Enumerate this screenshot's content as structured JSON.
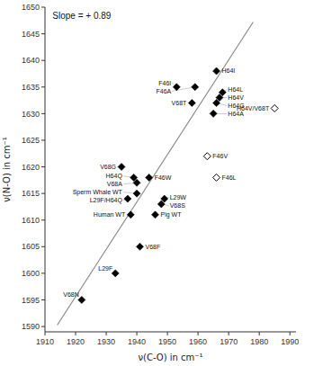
{
  "chart_data": {
    "type": "scatter",
    "title": "Slope = + 0.89",
    "xlabel": "ν(C-O) in cm⁻¹",
    "ylabel": "ν(N-O) in cm⁻¹",
    "xlim": [
      1910,
      1992
    ],
    "ylim": [
      1589,
      1650
    ],
    "xticks": [
      1910,
      1920,
      1930,
      1940,
      1950,
      1960,
      1970,
      1980,
      1990
    ],
    "yticks": [
      1590,
      1595,
      1600,
      1605,
      1610,
      1615,
      1620,
      1625,
      1630,
      1635,
      1640,
      1645,
      1650
    ],
    "series": [
      {
        "type": "line",
        "color": "#888888",
        "x": [
          1914,
          1978
        ],
        "values": [
          1590.26,
          1647.22
        ]
      },
      {
        "type": "scatter",
        "marker": "diamond",
        "color": "black",
        "x": [
          1922,
          1933,
          1941,
          1938,
          1937,
          1940,
          1946,
          1948,
          1940,
          1949,
          1939,
          1944,
          1935,
          1965,
          1966,
          1967,
          1968,
          1958,
          1953,
          1959,
          1966
        ],
        "values": [
          1595,
          1600,
          1605,
          1611,
          1614,
          1615,
          1611,
          1613,
          1617,
          1614,
          1618,
          1618,
          1620,
          1630,
          1632,
          1633,
          1634,
          1632,
          1635,
          1635,
          1638
        ],
        "labels": [
          "V68N",
          "L29F",
          "V68F",
          "Human WT",
          "L29F/H64Q",
          "Sperm Whale WT",
          "Pig WT",
          "V68S",
          "V68A",
          "L29W",
          "H64Q",
          "F46W",
          "V68G",
          "H64A",
          "H64G",
          "H64V",
          "H64L",
          "V68T",
          "F46I",
          "F46A",
          "H64I"
        ]
      },
      {
        "type": "scatter",
        "marker": "open-diamond",
        "color": "black",
        "x": [
          1963,
          1966,
          1985
        ],
        "values": [
          1622,
          1618,
          1631
        ],
        "labels": [
          "F46V",
          "F46L",
          "H64V/V68T"
        ]
      }
    ]
  }
}
